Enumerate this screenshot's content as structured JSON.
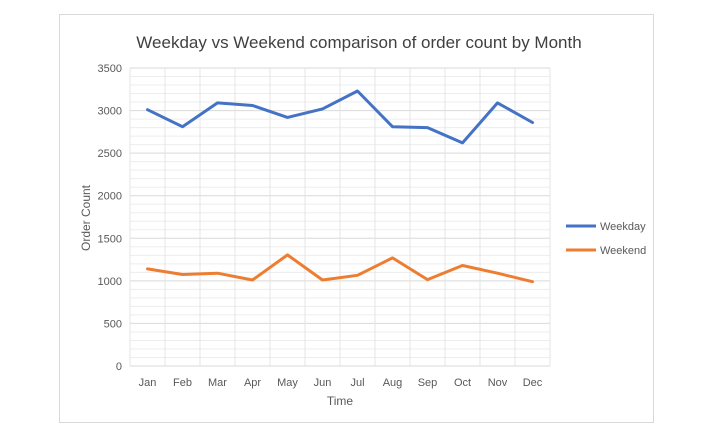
{
  "chart_data": {
    "type": "line",
    "title": "Weekday vs Weekend comparison of order count by Month",
    "xlabel": "Time",
    "ylabel": "Order Count",
    "categories": [
      "Jan",
      "Feb",
      "Mar",
      "Apr",
      "May",
      "Jun",
      "Jul",
      "Aug",
      "Sep",
      "Oct",
      "Nov",
      "Dec"
    ],
    "ylim": [
      0,
      3500
    ],
    "yticks": [
      0,
      500,
      1000,
      1500,
      2000,
      2500,
      3000,
      3500
    ],
    "grid": true,
    "legend_position": "right",
    "series": [
      {
        "name": "Weekday",
        "color": "#4472c4",
        "values": [
          3010,
          2810,
          3090,
          3060,
          2920,
          3020,
          3230,
          2810,
          2800,
          2620,
          3090,
          2860
        ]
      },
      {
        "name": "Weekend",
        "color": "#ed7d31",
        "values": [
          1140,
          1075,
          1090,
          1010,
          1305,
          1010,
          1065,
          1270,
          1015,
          1180,
          1090,
          990
        ]
      }
    ]
  }
}
